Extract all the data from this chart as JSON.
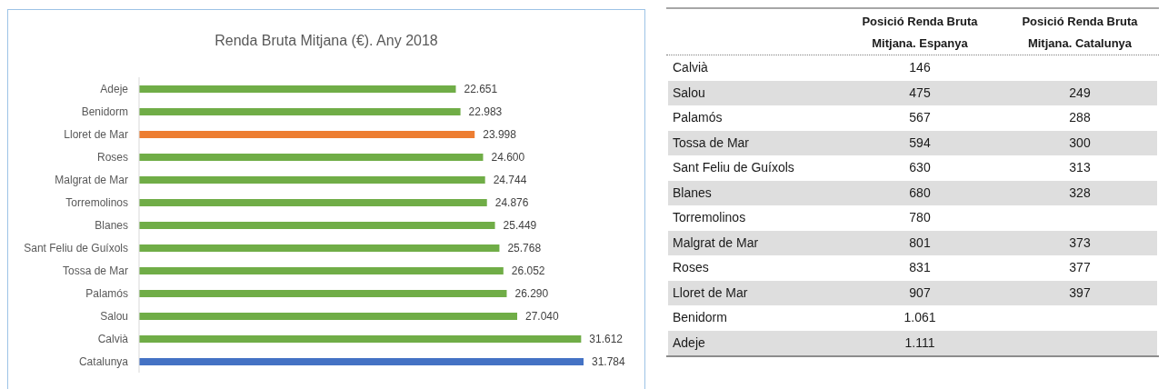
{
  "chart_data": [
    {
      "type": "bar",
      "orientation": "horizontal",
      "title": "Renda Bruta Mitjana (€). Any 2018",
      "tick_labels": "y",
      "categories": [
        "Adeje",
        "Benidorm",
        "Lloret de Mar",
        "Roses",
        "Malgrat de Mar",
        "Torremolinos",
        "Blanes",
        "Sant Feliu de Guíxols",
        "Tossa de Mar",
        "Palamós",
        "Salou",
        "Calvià",
        "Catalunya"
      ],
      "values": [
        22651,
        22983,
        23998,
        24600,
        24744,
        24876,
        25449,
        25768,
        26052,
        26290,
        27040,
        31612,
        31784
      ],
      "value_labels": [
        "22.651",
        "22.983",
        "23.998",
        "24.600",
        "24.744",
        "24.876",
        "25.449",
        "25.768",
        "26.052",
        "26.290",
        "27.040",
        "31.612",
        "31.784"
      ],
      "colors": [
        "#70ad47",
        "#70ad47",
        "#ed7d31",
        "#70ad47",
        "#70ad47",
        "#70ad47",
        "#70ad47",
        "#70ad47",
        "#70ad47",
        "#70ad47",
        "#70ad47",
        "#70ad47",
        "#4472c4"
      ]
    },
    {
      "type": "other",
      "categories": [
        "Calvià",
        "Salou",
        "Palamós",
        "Tossa de Mar",
        "Sant Feliu de Guíxols",
        "Blanes",
        "Torremolinos",
        "Malgrat de Mar",
        "Roses",
        "Lloret de Mar",
        "Benidorm",
        "Adeje"
      ],
      "series": [
        {
          "name": "Posició Renda Bruta Mitjana. Espanya",
          "values": [
            146,
            475,
            567,
            594,
            630,
            680,
            780,
            801,
            831,
            907,
            1061,
            1111
          ],
          "value_labels": [
            "146",
            "475",
            "567",
            "594",
            "630",
            "680",
            "780",
            "801",
            "831",
            "907",
            "1.061",
            "1.111"
          ]
        },
        {
          "name": "Posició Renda Bruta Mitjana. Catalunya",
          "values": [
            null,
            249,
            288,
            300,
            313,
            328,
            null,
            373,
            377,
            397,
            null,
            null
          ],
          "value_labels": [
            null,
            "249",
            "288",
            "300",
            "313",
            "328",
            null,
            "373",
            "377",
            "397",
            null,
            null
          ]
        }
      ]
    }
  ]
}
